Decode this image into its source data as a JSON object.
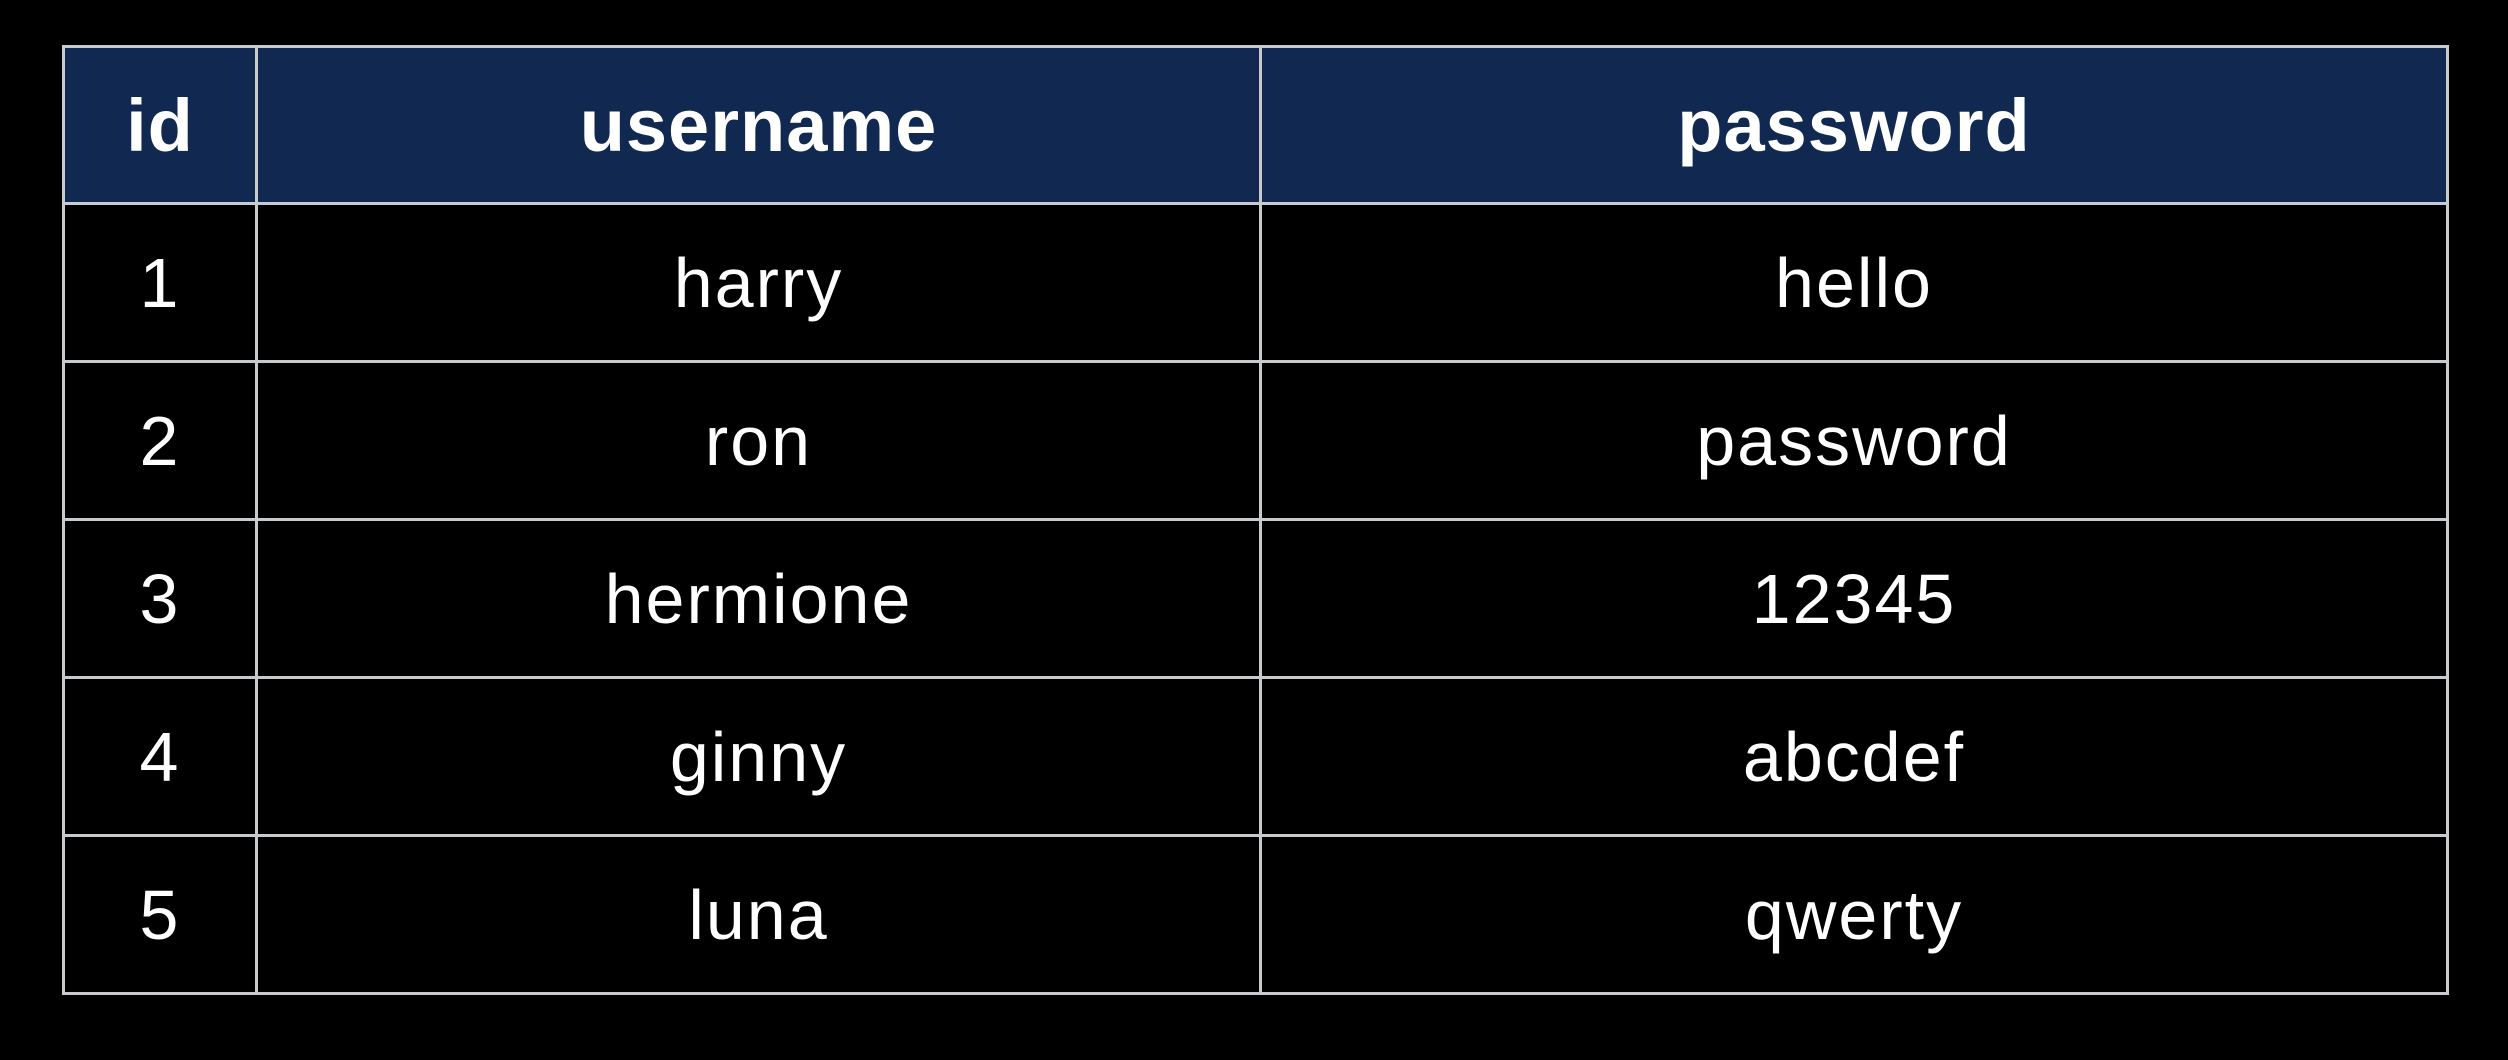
{
  "page": {
    "background": "#000000"
  },
  "colors": {
    "header_bg": "#112950",
    "border": "#c8cbce",
    "text": "#ffffff",
    "background": "#000000"
  },
  "chart_data": {
    "type": "table",
    "columns": [
      "id",
      "username",
      "password"
    ],
    "rows": [
      [
        "1",
        "harry",
        "hello"
      ],
      [
        "2",
        "ron",
        "password"
      ],
      [
        "3",
        "hermione",
        "12345"
      ],
      [
        "4",
        "ginny",
        "abcdef"
      ],
      [
        "5",
        "luna",
        "qwerty"
      ]
    ]
  },
  "table": {
    "header": {
      "id": "id",
      "username": "username",
      "password": "password"
    },
    "rows": [
      {
        "id": "1",
        "username": "harry",
        "password": "hello"
      },
      {
        "id": "2",
        "username": "ron",
        "password": "password"
      },
      {
        "id": "3",
        "username": "hermione",
        "password": "12345"
      },
      {
        "id": "4",
        "username": "ginny",
        "password": "abcdef"
      },
      {
        "id": "5",
        "username": "luna",
        "password": "qwerty"
      }
    ]
  }
}
